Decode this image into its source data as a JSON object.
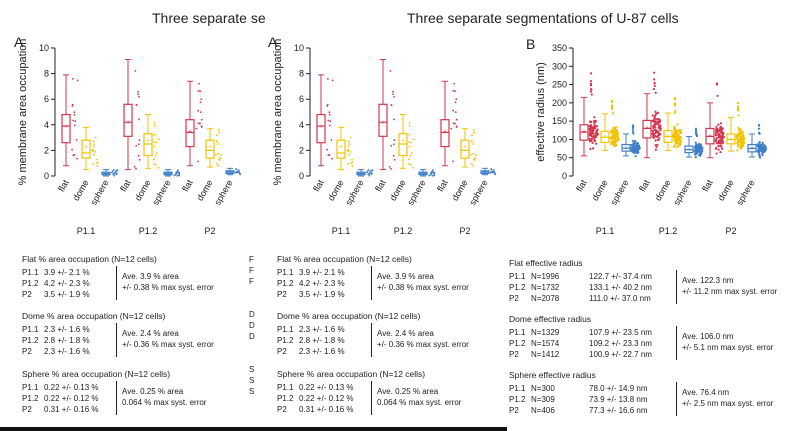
{
  "titles": {
    "left": "Three separate se",
    "right": "Three separate segmentations of U-87 cells"
  },
  "panels": {
    "A": "A",
    "B": "B"
  },
  "colors": {
    "flat": "#d4364f",
    "dome": "#f2c300",
    "sphere": "#3f7fc8"
  },
  "chart_data": [
    {
      "type": "box",
      "panel": "A",
      "ylabel": "% membrane area occupation",
      "ylim": [
        0,
        10
      ],
      "yticks": [
        0,
        2,
        4,
        6,
        8,
        10
      ],
      "categories": [
        "flat",
        "dome",
        "sphere"
      ],
      "groups": [
        "P1.1",
        "P1.2",
        "P2"
      ],
      "series": [
        {
          "group": "P1.1",
          "category": "flat",
          "min": 0.8,
          "q1": 2.6,
          "median": 3.9,
          "q3": 4.8,
          "max": 7.9,
          "mean": 3.9
        },
        {
          "group": "P1.1",
          "category": "dome",
          "min": 0.5,
          "q1": 1.4,
          "median": 1.8,
          "q3": 2.8,
          "max": 3.8,
          "mean": 2.3
        },
        {
          "group": "P1.1",
          "category": "sphere",
          "min": 0.0,
          "q1": 0.1,
          "median": 0.2,
          "q3": 0.3,
          "max": 0.5,
          "mean": 0.22
        },
        {
          "group": "P1.2",
          "category": "flat",
          "min": 0.5,
          "q1": 3.1,
          "median": 4.2,
          "q3": 5.6,
          "max": 9.1,
          "mean": 4.2
        },
        {
          "group": "P1.2",
          "category": "dome",
          "min": 0.6,
          "q1": 1.6,
          "median": 2.5,
          "q3": 3.3,
          "max": 4.8,
          "mean": 2.8
        },
        {
          "group": "P1.2",
          "category": "sphere",
          "min": 0.0,
          "q1": 0.1,
          "median": 0.2,
          "q3": 0.3,
          "max": 0.5,
          "mean": 0.22
        },
        {
          "group": "P2",
          "category": "flat",
          "min": 0.8,
          "q1": 2.3,
          "median": 3.4,
          "q3": 4.4,
          "max": 7.4,
          "mean": 3.5
        },
        {
          "group": "P2",
          "category": "dome",
          "min": 0.7,
          "q1": 1.4,
          "median": 2.0,
          "q3": 2.8,
          "max": 3.7,
          "mean": 2.3
        },
        {
          "group": "P2",
          "category": "sphere",
          "min": 0.1,
          "q1": 0.2,
          "median": 0.3,
          "q3": 0.4,
          "max": 0.6,
          "mean": 0.31
        }
      ]
    },
    {
      "type": "box",
      "panel": "B",
      "ylabel": "effective radius (nm)",
      "ylim": [
        0,
        350
      ],
      "yticks": [
        0,
        50,
        100,
        150,
        200,
        250,
        300,
        350
      ],
      "categories": [
        "flat",
        "dome",
        "sphere"
      ],
      "groups": [
        "P1.1",
        "P1.2",
        "P2"
      ],
      "series": [
        {
          "group": "P1.1",
          "category": "flat",
          "min": 55,
          "q1": 98,
          "median": 120,
          "q3": 140,
          "max": 215,
          "mean": 122.7
        },
        {
          "group": "P1.1",
          "category": "dome",
          "min": 70,
          "q1": 92,
          "median": 106,
          "q3": 122,
          "max": 170,
          "mean": 107.9
        },
        {
          "group": "P1.1",
          "category": "sphere",
          "min": 55,
          "q1": 68,
          "median": 76,
          "q3": 86,
          "max": 115,
          "mean": 78.0
        },
        {
          "group": "P1.2",
          "category": "flat",
          "min": 50,
          "q1": 104,
          "median": 130,
          "q3": 152,
          "max": 225,
          "mean": 133.1
        },
        {
          "group": "P1.2",
          "category": "dome",
          "min": 70,
          "q1": 92,
          "median": 108,
          "q3": 124,
          "max": 172,
          "mean": 109.2
        },
        {
          "group": "P1.2",
          "category": "sphere",
          "min": 52,
          "q1": 64,
          "median": 72,
          "q3": 82,
          "max": 108,
          "mean": 73.9
        },
        {
          "group": "P2",
          "category": "flat",
          "min": 50,
          "q1": 88,
          "median": 108,
          "q3": 130,
          "max": 200,
          "mean": 111.0
        },
        {
          "group": "P2",
          "category": "dome",
          "min": 68,
          "q1": 88,
          "median": 100,
          "q3": 115,
          "max": 160,
          "mean": 100.9
        },
        {
          "group": "P2",
          "category": "sphere",
          "min": 52,
          "q1": 66,
          "median": 75,
          "q3": 86,
          "max": 115,
          "mean": 77.3
        }
      ]
    }
  ],
  "stats_A": [
    {
      "title": "Flat % area occupation (N=12 cells)",
      "rows": [
        [
          "P1.1",
          "3.9 +/- 2.1 %"
        ],
        [
          "P1.2",
          "4.2 +/- 2.3 %"
        ],
        [
          "P2",
          "3.5 +/- 1.9 %"
        ]
      ],
      "summary": [
        "Ave. 3.9 % area",
        "+/- 0.38 % max syst. error"
      ]
    },
    {
      "title": "Dome % area occupation (N=12 cells)",
      "rows": [
        [
          "P1.1",
          "2.3 +/- 1.6 %"
        ],
        [
          "P1.2",
          "2.8 +/- 1.8 %"
        ],
        [
          "P2",
          "2.3 +/- 1.6 %"
        ]
      ],
      "summary": [
        "Ave. 2.4 % area",
        "+/- 0.36 % max syst. error"
      ]
    },
    {
      "title": "Sphere % area occupation (N=12 cells)",
      "rows": [
        [
          "P1.1",
          "0.22 +/- 0.13 %"
        ],
        [
          "P1.2",
          "0.22 +/- 0.12 %"
        ],
        [
          "P2",
          "0.31 +/- 0.16 %"
        ]
      ],
      "summary": [
        "Ave. 0.25 % area",
        "0.064 % max syst. error"
      ]
    }
  ],
  "stats_B": [
    {
      "title": "Flat effective radius",
      "rows": [
        [
          "P1.1",
          "N=1996",
          "122.7 +/- 37.4 nm"
        ],
        [
          "P1.2",
          "N=1732",
          "133.1 +/- 40.2 nm"
        ],
        [
          "P2",
          "N=2078",
          "111.0 +/- 37.0 nm"
        ]
      ],
      "summary": [
        "Ave. 122.3 nm",
        "+/- 11.2 nm max syst. error"
      ]
    },
    {
      "title": "Dome effective radius",
      "rows": [
        [
          "P1.1",
          "N=1329",
          "107.9 +/- 23.5 nm"
        ],
        [
          "P1.2",
          "N=1574",
          "109.2 +/- 23.3 nm"
        ],
        [
          "P2",
          "N=1412",
          "100.9 +/- 22.7 nm"
        ]
      ],
      "summary": [
        "Ave. 106.0 nm",
        "+/- 5.1 nm max syst. error"
      ]
    },
    {
      "title": "Sphere effective radius",
      "rows": [
        [
          "P1.1",
          "N=300",
          "78.0 +/- 14.9 nm"
        ],
        [
          "P1.2",
          "N=309",
          "73.9 +/- 13.8 nm"
        ],
        [
          "P2",
          "N=406",
          "77.3 +/- 16.6 nm"
        ]
      ],
      "summary": [
        "Ave. 76.4 nm",
        "+/- 2.5 nm max syst. error"
      ]
    }
  ],
  "truncated_first_letters": [
    "F",
    "F",
    "F",
    "D",
    "D",
    "D",
    "S",
    "S",
    "S"
  ]
}
